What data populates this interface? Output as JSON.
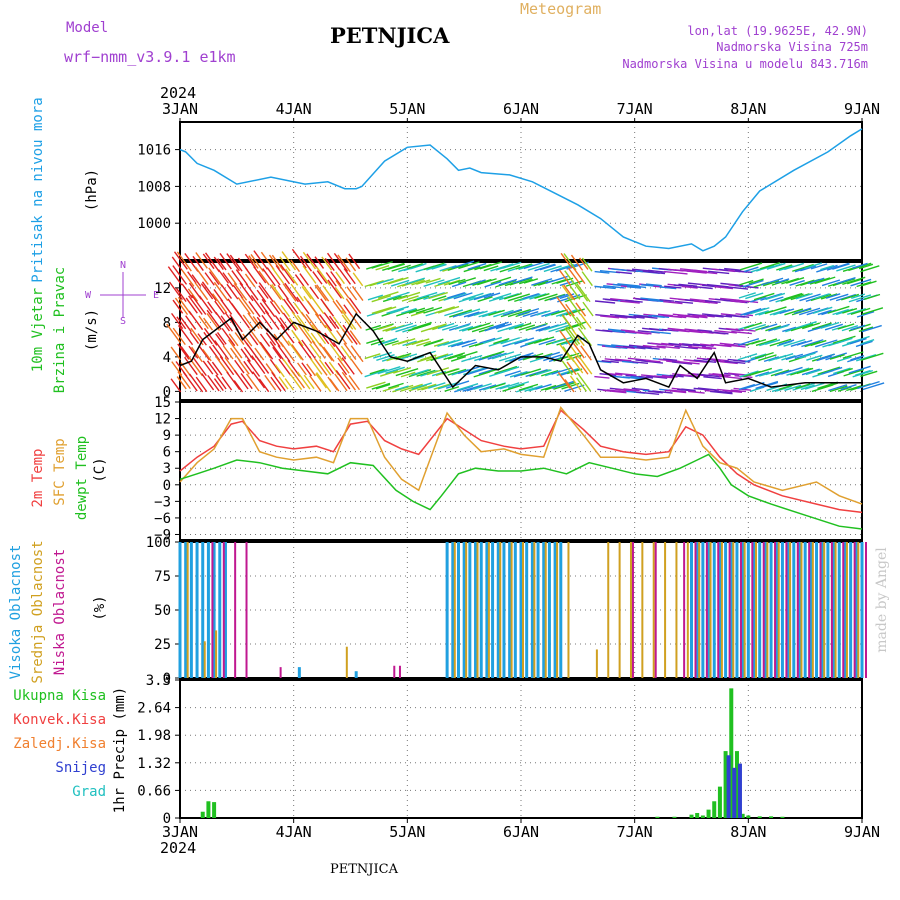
{
  "header": {
    "model_label": "Model",
    "model_name": "wrf−nmm_v3.9.1  e1km",
    "station": "PETNJICA",
    "product": "Meteogram",
    "lonlat": "lon,lat (19.9625E, 42.9N)",
    "elevation": "Nadmorska Visina 725m",
    "model_elevation": "Nadmorska Visina u modelu 843.716m",
    "footer_station": "PETNJICA",
    "credit": "made by Angel",
    "year": "2024"
  },
  "colors": {
    "pressure": "#1ea0e6",
    "temp": "#f04040",
    "sfc": "#e0a030",
    "dew": "#20c020",
    "high": "#20a0e0",
    "mid": "#d0a020",
    "low": "#c01890",
    "total": "#20c020",
    "conv": "#f04040",
    "frozen": "#f08030",
    "snow": "#3040d0",
    "grad": "#20c0c0",
    "purple": "#a040d0",
    "axis": "#000000"
  },
  "chart_data": [
    {
      "id": "pressure",
      "type": "line",
      "ylabel_title": "Pritisak na nivou mora",
      "ylabel_unit": "(hPa)",
      "ylim": [
        992,
        1022
      ],
      "yticks": [
        "1000",
        "1008",
        "1016"
      ],
      "xticks": [
        "3JAN",
        "4JAN",
        "5JAN",
        "6JAN",
        "7JAN",
        "8JAN",
        "9JAN"
      ],
      "series": [
        {
          "x": [
            0,
            0.05,
            0.15,
            0.3,
            0.5,
            0.8,
            1.1,
            1.3,
            1.45,
            1.55,
            1.6,
            1.8,
            2.0,
            2.2,
            2.35,
            2.45,
            2.55,
            2.65,
            2.9,
            3.1,
            3.3,
            3.5,
            3.7,
            3.9,
            4.1,
            4.3,
            4.5,
            4.6,
            4.7,
            4.8,
            4.95,
            5.1,
            5.4,
            5.7,
            5.9,
            6.0
          ],
          "y": [
            1016,
            1015.5,
            1013,
            1011.5,
            1008.5,
            1010,
            1008.5,
            1009,
            1007.5,
            1007.5,
            1008,
            1013.5,
            1016.5,
            1017,
            1014,
            1011.5,
            1012,
            1011,
            1010.5,
            1009,
            1006.5,
            1004,
            1001,
            997,
            995,
            994.5,
            995.5,
            994,
            995,
            997,
            1002.5,
            1007,
            1011.5,
            1015.5,
            1019,
            1020.5
          ]
        }
      ]
    },
    {
      "id": "wind",
      "type": "line",
      "ylabel_title": "10m Vjetar",
      "ylabel_title2": "Brzina i Pravac",
      "ylabel_unit": "(m/s)",
      "compass": [
        "N",
        "W",
        "E",
        "S"
      ],
      "ylim": [
        -1,
        15
      ],
      "yticks": [
        "0",
        "4",
        "8",
        "12"
      ],
      "xticks": [
        "3JAN",
        "4JAN",
        "5JAN",
        "6JAN",
        "7JAN",
        "8JAN",
        "9JAN"
      ],
      "series": [
        {
          "x": [
            0,
            0.1,
            0.2,
            0.3,
            0.45,
            0.55,
            0.7,
            0.85,
            1.0,
            1.2,
            1.4,
            1.55,
            1.7,
            1.85,
            2.0,
            2.2,
            2.4,
            2.6,
            2.8,
            3.0,
            3.2,
            3.35,
            3.5,
            3.6,
            3.7,
            3.9,
            4.1,
            4.3,
            4.4,
            4.55,
            4.7,
            4.8,
            5.0,
            5.2,
            5.5,
            5.8,
            6.0
          ],
          "y": [
            3,
            3.5,
            6,
            7,
            8.5,
            6,
            8,
            6,
            8,
            7,
            5.5,
            9,
            7,
            4,
            3.5,
            4.5,
            0.5,
            3,
            2.5,
            4,
            4,
            3.5,
            6.5,
            5.5,
            2.5,
            1,
            1.5,
            0.5,
            3,
            1.5,
            4.5,
            1,
            1.5,
            0.5,
            1,
            1,
            1
          ]
        }
      ]
    },
    {
      "id": "temperature",
      "type": "line",
      "ylabel_title": "2m Temp",
      "ylabel_title2": "SFC Temp",
      "ylabel_title3": "dewpt Temp",
      "ylabel_unit": "(C)",
      "ylim": [
        -10,
        15
      ],
      "yticks": [
        "−9",
        "−6",
        "−3",
        "0",
        "3",
        "6",
        "9",
        "12",
        "15"
      ],
      "xticks": [
        "3JAN",
        "4JAN",
        "5JAN",
        "6JAN",
        "7JAN",
        "8JAN",
        "9JAN"
      ],
      "series": [
        {
          "name": "2m Temp",
          "x": [
            0,
            0.15,
            0.3,
            0.45,
            0.55,
            0.7,
            0.85,
            1.0,
            1.2,
            1.35,
            1.5,
            1.65,
            1.8,
            1.95,
            2.1,
            2.35,
            2.5,
            2.65,
            2.85,
            3.0,
            3.2,
            3.35,
            3.55,
            3.7,
            3.9,
            4.1,
            4.3,
            4.45,
            4.6,
            4.75,
            4.9,
            5.05,
            5.3,
            5.6,
            5.8,
            6.0
          ],
          "y": [
            2.5,
            5,
            7,
            11,
            11.5,
            8,
            7,
            6.5,
            7,
            6,
            11,
            11.5,
            8,
            6.5,
            5.5,
            12,
            10,
            8,
            7,
            6.5,
            7,
            13.5,
            10,
            7,
            6,
            5.5,
            6,
            10.5,
            9,
            5,
            2,
            0,
            -2,
            -3.5,
            -4.5,
            -5
          ]
        },
        {
          "name": "SFC Temp",
          "x": [
            0,
            0.15,
            0.3,
            0.45,
            0.55,
            0.7,
            0.85,
            1.0,
            1.2,
            1.35,
            1.5,
            1.65,
            1.8,
            1.95,
            2.1,
            2.35,
            2.5,
            2.65,
            2.85,
            3.0,
            3.2,
            3.35,
            3.55,
            3.7,
            3.9,
            4.1,
            4.3,
            4.45,
            4.6,
            4.75,
            4.9,
            5.05,
            5.3,
            5.6,
            5.8,
            6.0
          ],
          "y": [
            0.5,
            4,
            6.5,
            12,
            12,
            6,
            5,
            4.5,
            5,
            4,
            12,
            12,
            5,
            1,
            -1,
            13,
            9,
            6,
            6.5,
            5.5,
            5,
            14,
            9,
            5,
            5,
            4.5,
            5,
            13.5,
            7,
            4,
            3,
            0.5,
            -1,
            0.5,
            -2,
            -3.5
          ]
        },
        {
          "name": "dewpt Temp",
          "x": [
            0,
            0.15,
            0.3,
            0.5,
            0.7,
            0.9,
            1.1,
            1.3,
            1.5,
            1.7,
            1.9,
            2.05,
            2.2,
            2.3,
            2.45,
            2.6,
            2.8,
            3.0,
            3.2,
            3.4,
            3.6,
            3.8,
            4.0,
            4.2,
            4.4,
            4.55,
            4.65,
            4.75,
            4.85,
            5.0,
            5.2,
            5.5,
            5.8,
            6.0
          ],
          "y": [
            1,
            2,
            3,
            4.5,
            4,
            3,
            2.5,
            2,
            4,
            3.5,
            -1,
            -3,
            -4.5,
            -2,
            2,
            3,
            2.5,
            2.5,
            3,
            2,
            4,
            3,
            2,
            1.5,
            3,
            4.5,
            5.5,
            3,
            0,
            -2,
            -3.5,
            -5.5,
            -7.5,
            -8
          ]
        }
      ]
    },
    {
      "id": "clouds",
      "type": "bar",
      "ylabel_title": "Visoka Oblacnost",
      "ylabel_title2": "Srednja Oblacnost",
      "ylabel_title3": "Niska Oblacnost",
      "ylabel_unit": "(%)",
      "ylim": [
        0,
        100
      ],
      "yticks": [
        "0",
        "25",
        "50",
        "75",
        "100"
      ],
      "xticks": [
        "3JAN",
        "4JAN",
        "5JAN",
        "6JAN",
        "7JAN",
        "8JAN",
        "9JAN"
      ],
      "series": [
        {
          "name": "Visoka Oblacnost",
          "x": [
            0.0,
            0.05,
            0.1,
            0.15,
            0.2,
            0.25,
            0.3,
            0.35,
            0.4,
            1.05,
            1.55,
            2.35,
            2.4,
            2.45,
            2.5,
            2.55,
            2.6,
            2.65,
            2.7,
            2.75,
            2.8,
            2.85,
            2.9,
            2.95,
            3.0,
            3.05,
            3.1,
            3.15,
            3.2,
            3.25,
            3.3,
            3.35,
            4.5,
            4.55,
            4.6,
            4.65,
            4.7,
            4.75,
            4.8,
            4.85,
            4.9,
            4.95,
            5.0,
            5.05,
            5.1,
            5.15,
            5.2,
            5.25,
            5.3,
            5.35,
            5.4,
            5.45,
            5.5,
            5.55,
            5.6,
            5.65,
            5.7,
            5.75,
            5.8,
            5.85,
            5.9,
            5.95,
            6.0
          ],
          "values": [
            100,
            100,
            100,
            100,
            100,
            100,
            100,
            100,
            100,
            8,
            5,
            100,
            100,
            100,
            100,
            100,
            100,
            100,
            100,
            100,
            100,
            100,
            100,
            100,
            100,
            100,
            100,
            100,
            100,
            100,
            100,
            100,
            100,
            100,
            100,
            100,
            100,
            100,
            100,
            100,
            100,
            100,
            100,
            100,
            100,
            100,
            100,
            100,
            100,
            100,
            100,
            100,
            100,
            100,
            100,
            100,
            100,
            100,
            100,
            100,
            100,
            100,
            100
          ]
        },
        {
          "name": "Srednja Oblacnost",
          "x": [
            0.05,
            0.2,
            0.3,
            1.45,
            2.4,
            2.5,
            2.6,
            2.7,
            2.8,
            2.9,
            3.0,
            3.1,
            3.2,
            3.3,
            3.4,
            3.65,
            3.75,
            3.85,
            3.95,
            4.05,
            4.15,
            4.25,
            4.35,
            4.45,
            4.55,
            4.65,
            4.75,
            4.85,
            4.95,
            5.05,
            5.15,
            5.25,
            5.35,
            5.45,
            5.55,
            5.65,
            5.75,
            5.85,
            5.95
          ],
          "values": [
            100,
            27,
            35,
            23,
            100,
            100,
            100,
            100,
            100,
            100,
            100,
            100,
            100,
            100,
            100,
            21,
            100,
            100,
            100,
            100,
            100,
            100,
            100,
            100,
            100,
            100,
            100,
            100,
            100,
            100,
            100,
            100,
            100,
            100,
            100,
            100,
            100,
            100,
            100
          ]
        },
        {
          "name": "Niska Oblacnost",
          "x": [
            0.25,
            0.35,
            0.45,
            0.55,
            0.85,
            1.85,
            1.9,
            3.95,
            4.15,
            4.4,
            4.5,
            4.6,
            4.7,
            4.8,
            4.9,
            5.0,
            5.1,
            5.2,
            5.3,
            5.4,
            5.5,
            5.6,
            5.7,
            5.8,
            5.9,
            6.0
          ],
          "values": [
            100,
            100,
            100,
            100,
            8,
            9,
            9,
            100,
            100,
            100,
            100,
            100,
            100,
            100,
            100,
            100,
            100,
            100,
            100,
            100,
            100,
            100,
            100,
            100,
            100,
            100
          ]
        }
      ]
    },
    {
      "id": "precip",
      "type": "bar",
      "ylabel_unit": "1hr Precip (mm)",
      "legend": [
        "Ukupna Kisa",
        "Konvek.Kisa",
        "Zaledj.Kisa",
        "Snijeg",
        "Grad"
      ],
      "ylim": [
        0,
        3.3
      ],
      "yticks": [
        "0",
        "0.66",
        "1.32",
        "1.98",
        "2.64",
        "3.3"
      ],
      "xticks": [
        "3JAN",
        "4JAN",
        "5JAN",
        "6JAN",
        "7JAN",
        "8JAN",
        "9JAN"
      ],
      "x_year": "2024",
      "series": [
        {
          "name": "Ukupna Kisa",
          "x": [
            0.2,
            0.25,
            0.3,
            4.2,
            4.35,
            4.5,
            4.55,
            4.6,
            4.65,
            4.7,
            4.75,
            4.8,
            4.85,
            4.9,
            4.95,
            5.0,
            5.1,
            5.2,
            5.3
          ],
          "values": [
            0.15,
            0.4,
            0.38,
            0.03,
            0.03,
            0.08,
            0.12,
            0.06,
            0.2,
            0.4,
            0.75,
            1.6,
            3.1,
            1.6,
            0.1,
            0.06,
            0.04,
            0.04,
            0.03
          ]
        },
        {
          "name": "Snijeg",
          "x": [
            4.8,
            4.85,
            4.9
          ],
          "values": [
            1.5,
            1.2,
            1.3
          ]
        }
      ]
    }
  ]
}
